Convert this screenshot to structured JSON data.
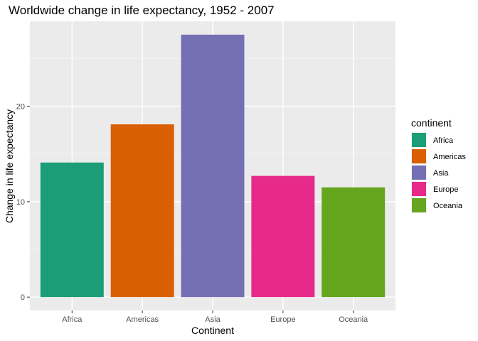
{
  "chart_data": {
    "type": "bar",
    "title": "Worldwide change in life expectancy, 1952 - 2007",
    "xlabel": "Continent",
    "ylabel": "Change in life expectancy",
    "categories": [
      "Africa",
      "Americas",
      "Asia",
      "Europe",
      "Oceania"
    ],
    "values": [
      14.1,
      18.1,
      27.5,
      12.7,
      11.5
    ],
    "colors": [
      "#1B9E77",
      "#D95F02",
      "#7570B3",
      "#E7298A",
      "#66A61E"
    ],
    "ylim": [
      -1.4,
      28.9
    ],
    "yticks": [
      0,
      10,
      20
    ],
    "ytick_labels": [
      "0",
      "10",
      "20"
    ],
    "grid": true,
    "legend": {
      "title": "continent",
      "position": "right",
      "entries": [
        "Africa",
        "Americas",
        "Asia",
        "Europe",
        "Oceania"
      ]
    }
  }
}
